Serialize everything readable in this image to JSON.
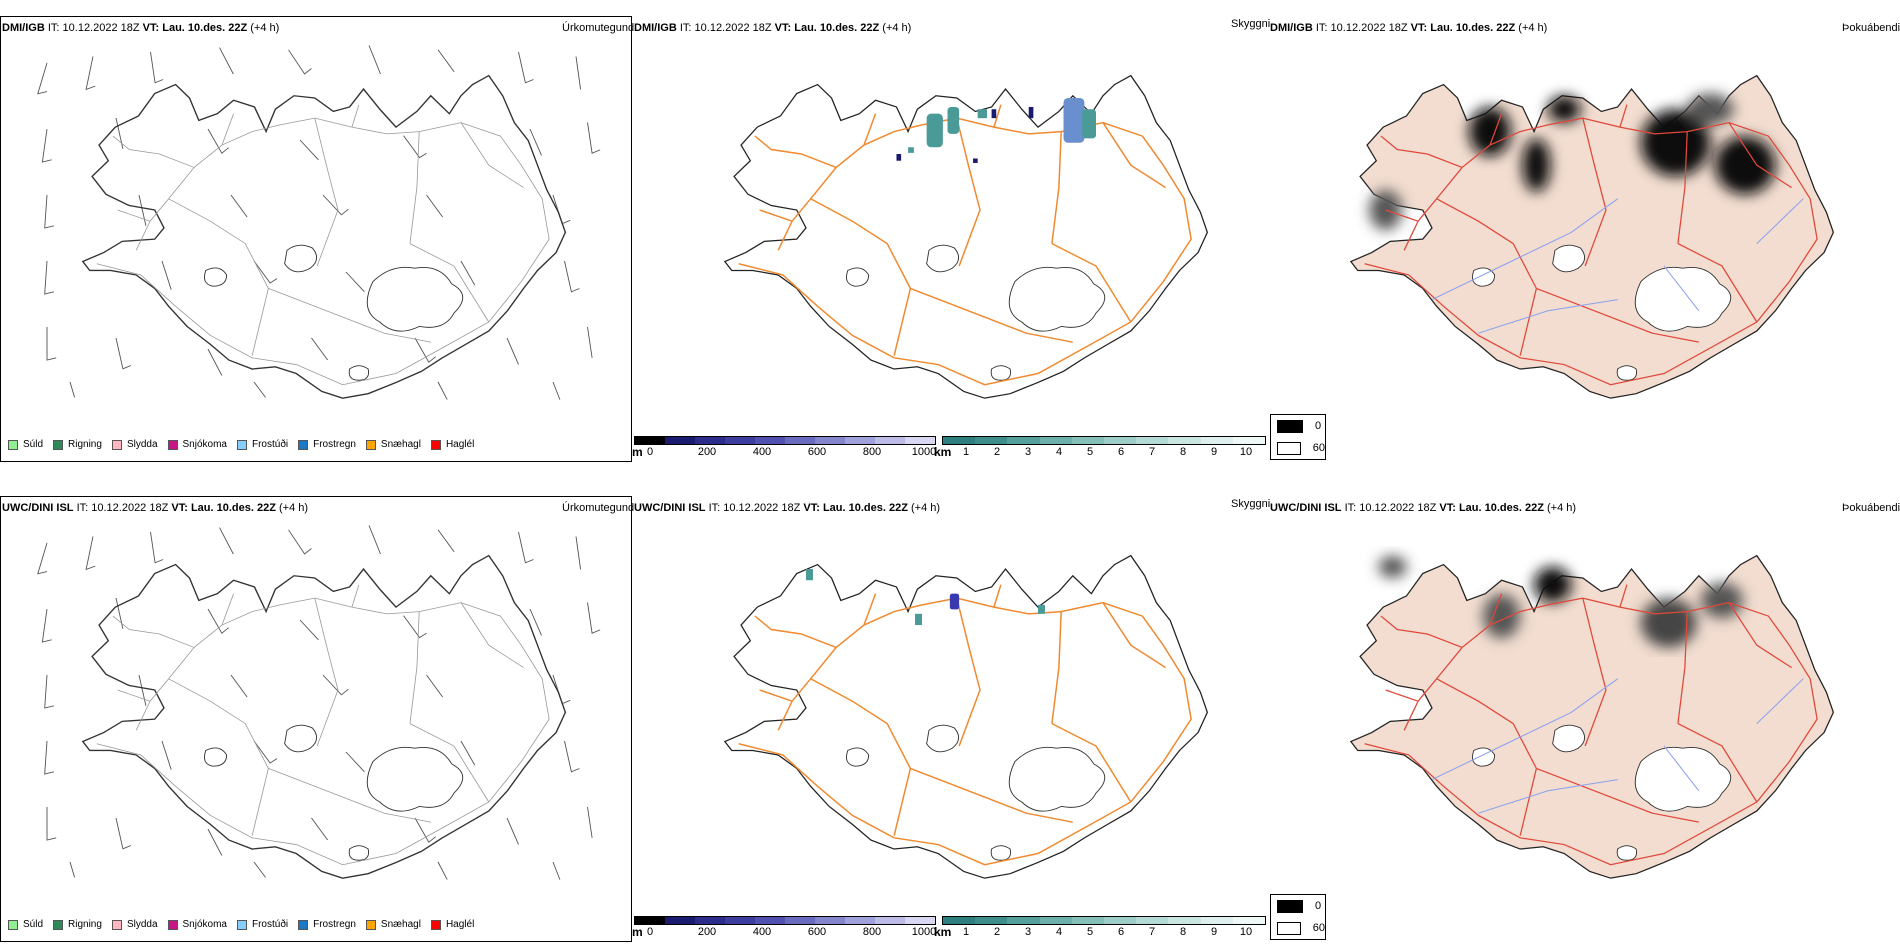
{
  "rows": [
    {
      "model": "DMI/IGB",
      "it_label": "IT:",
      "it_value": "10.12.2022 18Z",
      "vt_label": "VT:",
      "vt_value": "Lau. 10.des. 22Z",
      "lead": "(+4 h)"
    },
    {
      "model": "UWC/DINI ISL",
      "it_label": "IT:",
      "it_value": "10.12.2022 18Z",
      "vt_label": "VT:",
      "vt_value": "Lau. 10.des. 22Z",
      "lead": "(+4 h)"
    }
  ],
  "fields": {
    "precip_type": "Úrkomutegund",
    "visibility": "Skyggni",
    "fog": "Þokuábendi"
  },
  "precip_legend": [
    {
      "label": "Súld",
      "color": "#90ee90"
    },
    {
      "label": "Rigning",
      "color": "#2e8b57"
    },
    {
      "label": "Slydda",
      "color": "#ffb6c1"
    },
    {
      "label": "Snjókoma",
      "color": "#c71585"
    },
    {
      "label": "Frostúði",
      "color": "#87cefa"
    },
    {
      "label": "Frostregn",
      "color": "#1e78c8"
    },
    {
      "label": "Snæhagl",
      "color": "#ffa500"
    },
    {
      "label": "Haglél",
      "color": "#ff0000"
    }
  ],
  "cloud_base_bar": {
    "unit": "m",
    "ticks": [
      "0",
      "200",
      "400",
      "600",
      "800",
      "1000"
    ],
    "colors": [
      "#000000",
      "#1a1a6e",
      "#2c2c8a",
      "#3d3da0",
      "#5050b0",
      "#6a6abe",
      "#8585cc",
      "#a0a0da",
      "#bcbce6",
      "#d8d8f2"
    ]
  },
  "visibility_bar": {
    "unit": "km",
    "ticks": [
      "1",
      "2",
      "3",
      "4",
      "5",
      "6",
      "7",
      "8",
      "9",
      "10"
    ],
    "colors": [
      "#2f7f7f",
      "#3f8e8c",
      "#56a09c",
      "#6bb0aa",
      "#84bfb8",
      "#9ccdc6",
      "#b3dad4",
      "#c9e6e1",
      "#ddf0ed",
      "#eef8f6"
    ]
  },
  "fog_legend": [
    {
      "value": "0",
      "color": "#000000"
    },
    {
      "value": "60",
      "color": "#ffffff"
    }
  ]
}
